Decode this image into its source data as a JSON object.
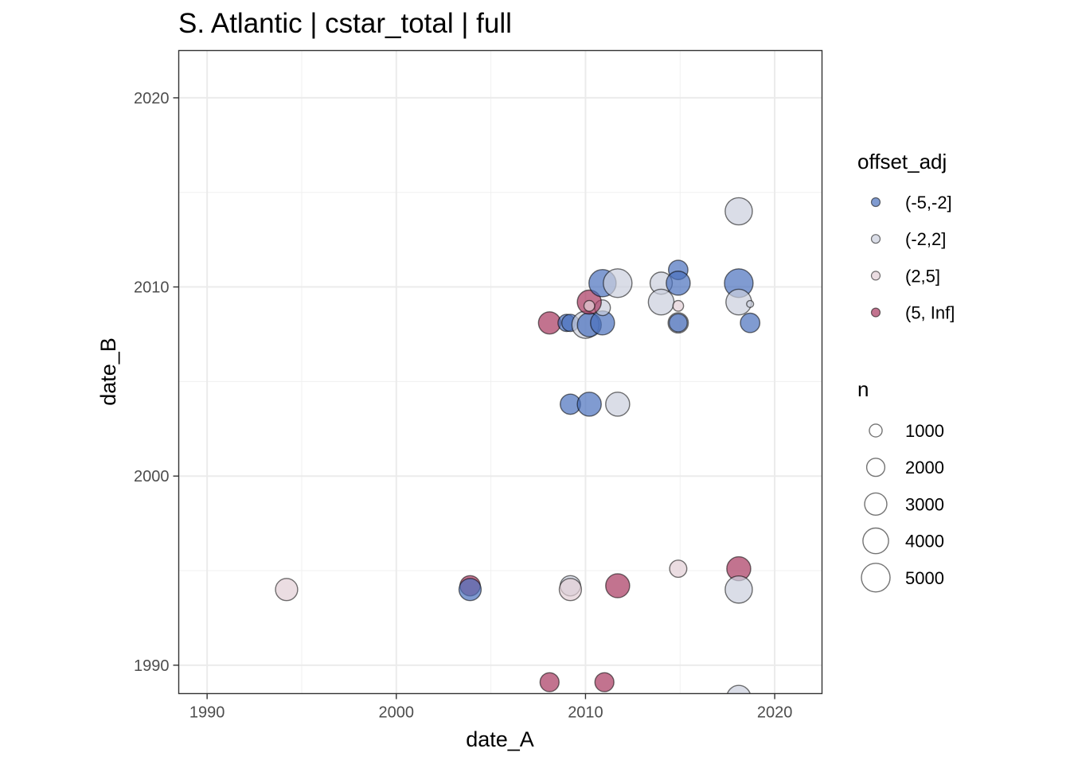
{
  "chart_data": {
    "type": "scatter",
    "title": "S. Atlantic | cstar_total | full",
    "xlabel": "date_A",
    "ylabel": "date_B",
    "xlim": [
      1988.5,
      2022.5
    ],
    "ylim": [
      1988.5,
      2022.5
    ],
    "x_ticks": [
      1990,
      2000,
      2010,
      2020
    ],
    "y_ticks": [
      1990,
      2000,
      2010,
      2020
    ],
    "x_tick_labels": [
      "1990",
      "2000",
      "2010",
      "2020"
    ],
    "y_tick_labels": [
      "1990",
      "2000",
      "2010",
      "2020"
    ],
    "grid": true,
    "colors": {
      "(-5,-2]": "#4a70be",
      "(-2,2]": "#cbcfdd",
      "(2,5]": "#e2cfd5",
      "(5, Inf]": "#a8385f"
    },
    "legend_color": {
      "title": "offset_adj",
      "entries": [
        "(-5,-2]",
        "(-2,2]",
        "(2,5]",
        "(5, Inf]"
      ]
    },
    "legend_size": {
      "title": "n",
      "values": [
        1000,
        2000,
        3000,
        4000,
        5000
      ],
      "labels": [
        "1000",
        "2000",
        "3000",
        "4000",
        "5000"
      ]
    },
    "points": [
      {
        "x": 1994.2,
        "y": 1994.0,
        "n": 3000,
        "group": "(2,5]"
      },
      {
        "x": 2003.9,
        "y": 1994.2,
        "n": 2500,
        "group": "(5, Inf]"
      },
      {
        "x": 2003.9,
        "y": 1994.0,
        "n": 3000,
        "group": "(-5,-2]"
      },
      {
        "x": 2009.2,
        "y": 1994.2,
        "n": 2500,
        "group": "(-2,2]"
      },
      {
        "x": 2009.2,
        "y": 1994.0,
        "n": 3000,
        "group": "(2,5]"
      },
      {
        "x": 2011.7,
        "y": 1994.2,
        "n": 3500,
        "group": "(5, Inf]"
      },
      {
        "x": 2014.9,
        "y": 1995.1,
        "n": 1800,
        "group": "(2,5]"
      },
      {
        "x": 2018.1,
        "y": 1995.1,
        "n": 3500,
        "group": "(5, Inf]"
      },
      {
        "x": 2018.1,
        "y": 1994.0,
        "n": 4500,
        "group": "(-2,2]"
      },
      {
        "x": 2008.1,
        "y": 1989.1,
        "n": 2200,
        "group": "(5, Inf]"
      },
      {
        "x": 2011.0,
        "y": 1989.1,
        "n": 2200,
        "group": "(5, Inf]"
      },
      {
        "x": 2018.1,
        "y": 1988.3,
        "n": 3500,
        "group": "(-2,2]"
      },
      {
        "x": 2009.2,
        "y": 2003.8,
        "n": 2500,
        "group": "(-5,-2]"
      },
      {
        "x": 2010.2,
        "y": 2003.8,
        "n": 3500,
        "group": "(-5,-2]"
      },
      {
        "x": 2011.7,
        "y": 2003.8,
        "n": 3500,
        "group": "(-2,2]"
      },
      {
        "x": 2008.1,
        "y": 2008.1,
        "n": 3000,
        "group": "(5, Inf]"
      },
      {
        "x": 2009.0,
        "y": 2008.1,
        "n": 1800,
        "group": "(-5,-2]"
      },
      {
        "x": 2009.2,
        "y": 2008.1,
        "n": 1800,
        "group": "(-5,-2]"
      },
      {
        "x": 2010.0,
        "y": 2008.0,
        "n": 4500,
        "group": "(-2,2]"
      },
      {
        "x": 2010.2,
        "y": 2008.0,
        "n": 3500,
        "group": "(-5,-2]"
      },
      {
        "x": 2010.9,
        "y": 2008.1,
        "n": 3500,
        "group": "(-5,-2]"
      },
      {
        "x": 2010.9,
        "y": 2008.9,
        "n": 1500,
        "group": "(-2,2]"
      },
      {
        "x": 2010.2,
        "y": 2009.2,
        "n": 3500,
        "group": "(5, Inf]"
      },
      {
        "x": 2010.2,
        "y": 2009.0,
        "n": 700,
        "group": "(2,5]"
      },
      {
        "x": 2010.9,
        "y": 2010.2,
        "n": 4500,
        "group": "(-5,-2]"
      },
      {
        "x": 2011.7,
        "y": 2010.2,
        "n": 5000,
        "group": "(-2,2]"
      },
      {
        "x": 2014.0,
        "y": 2010.2,
        "n": 3000,
        "group": "(-2,2]"
      },
      {
        "x": 2014.0,
        "y": 2009.2,
        "n": 4000,
        "group": "(-2,2]"
      },
      {
        "x": 2014.9,
        "y": 2010.9,
        "n": 2300,
        "group": "(-5,-2]"
      },
      {
        "x": 2014.9,
        "y": 2010.2,
        "n": 3500,
        "group": "(-5,-2]"
      },
      {
        "x": 2014.9,
        "y": 2009.0,
        "n": 700,
        "group": "(2,5]"
      },
      {
        "x": 2014.9,
        "y": 2008.1,
        "n": 2500,
        "group": "(-2,2]"
      },
      {
        "x": 2014.9,
        "y": 2008.1,
        "n": 2000,
        "group": "(-5,-2]"
      },
      {
        "x": 2018.1,
        "y": 2014.0,
        "n": 4500,
        "group": "(-2,2]"
      },
      {
        "x": 2018.1,
        "y": 2010.2,
        "n": 5000,
        "group": "(-5,-2]"
      },
      {
        "x": 2018.1,
        "y": 2009.2,
        "n": 4000,
        "group": "(-2,2]"
      },
      {
        "x": 2018.7,
        "y": 2009.1,
        "n": 300,
        "group": "(-2,2]"
      },
      {
        "x": 2018.7,
        "y": 2008.1,
        "n": 2300,
        "group": "(-5,-2]"
      }
    ]
  }
}
